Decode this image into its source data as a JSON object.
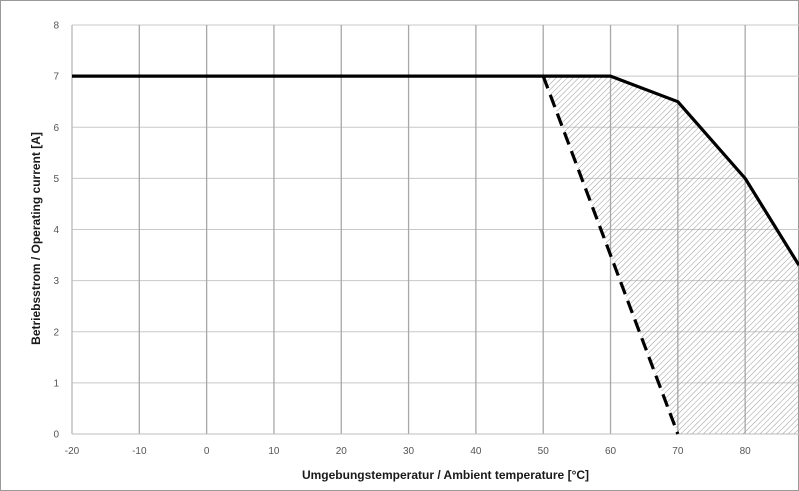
{
  "chart_data": {
    "type": "line",
    "title": "",
    "xlabel": "Umgebungstemperatur / Ambient temperature [°C]",
    "ylabel": "Betriebsstrom / Operating current [A]",
    "xlim": [
      -20,
      88
    ],
    "ylim": [
      0,
      8
    ],
    "x_ticks": [
      "-20",
      "-10",
      "0",
      "10",
      "20",
      "30",
      "40",
      "50",
      "60",
      "70",
      "80"
    ],
    "y_ticks": [
      "0",
      "1",
      "2",
      "3",
      "4",
      "5",
      "6",
      "7",
      "8"
    ],
    "grid": true,
    "legend": "none",
    "series": [
      {
        "style": "solid",
        "color": "#000000",
        "x": [
          -20,
          50,
          60,
          70,
          80,
          88
        ],
        "y": [
          7,
          7,
          7,
          6.5,
          5,
          3.3
        ]
      },
      {
        "style": "dashed",
        "color": "#000000",
        "x": [
          50,
          70
        ],
        "y": [
          7,
          0
        ]
      }
    ],
    "shaded_region": {
      "fill": "hatched",
      "color": "#9a9a9a",
      "upper_bound": "solid",
      "lower_bound": "dashed"
    }
  }
}
